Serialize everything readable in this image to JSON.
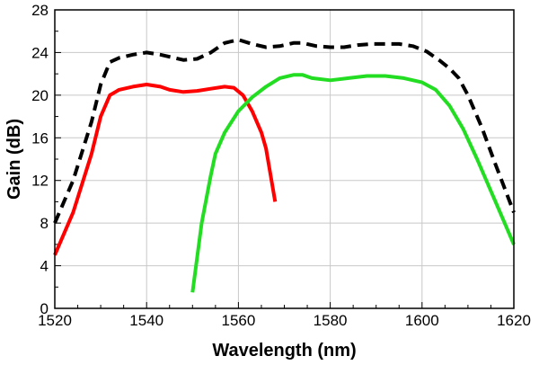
{
  "chart_data": {
    "type": "line",
    "title": "",
    "xlabel": "Wavelength (nm)",
    "ylabel": "Gain (dB)",
    "xlim": [
      1520,
      1620
    ],
    "ylim": [
      0,
      28
    ],
    "x_ticks": [
      1520,
      1540,
      1560,
      1580,
      1600,
      1620
    ],
    "y_ticks": [
      0,
      4,
      8,
      12,
      16,
      20,
      24,
      28
    ],
    "grid": true,
    "legend": "none",
    "series": [
      {
        "color": "#000000",
        "style": "dashed",
        "points": [
          [
            1520,
            8.0
          ],
          [
            1524,
            12.0
          ],
          [
            1528,
            17.5
          ],
          [
            1530,
            21.0
          ],
          [
            1532,
            23.1
          ],
          [
            1534,
            23.5
          ],
          [
            1537,
            23.8
          ],
          [
            1540,
            24.0
          ],
          [
            1543,
            23.8
          ],
          [
            1545,
            23.6
          ],
          [
            1548,
            23.3
          ],
          [
            1551,
            23.4
          ],
          [
            1554,
            24.0
          ],
          [
            1557,
            24.9
          ],
          [
            1560,
            25.2
          ],
          [
            1563,
            24.8
          ],
          [
            1566,
            24.5
          ],
          [
            1569,
            24.6
          ],
          [
            1572,
            24.9
          ],
          [
            1574,
            24.9
          ],
          [
            1577,
            24.6
          ],
          [
            1580,
            24.5
          ],
          [
            1583,
            24.5
          ],
          [
            1586,
            24.7
          ],
          [
            1589,
            24.8
          ],
          [
            1592,
            24.8
          ],
          [
            1595,
            24.8
          ],
          [
            1598,
            24.6
          ],
          [
            1601,
            24.1
          ],
          [
            1604,
            23.2
          ],
          [
            1606,
            22.5
          ],
          [
            1608,
            21.6
          ],
          [
            1610,
            20.0
          ],
          [
            1613,
            17.0
          ],
          [
            1616,
            13.5
          ],
          [
            1620,
            9.0
          ]
        ]
      },
      {
        "color": "#ff0000",
        "style": "solid",
        "points": [
          [
            1520,
            5.0
          ],
          [
            1524,
            9.0
          ],
          [
            1528,
            14.5
          ],
          [
            1530,
            18.0
          ],
          [
            1532,
            20.0
          ],
          [
            1534,
            20.5
          ],
          [
            1537,
            20.8
          ],
          [
            1540,
            21.0
          ],
          [
            1543,
            20.8
          ],
          [
            1545,
            20.5
          ],
          [
            1548,
            20.3
          ],
          [
            1551,
            20.4
          ],
          [
            1554,
            20.6
          ],
          [
            1557,
            20.8
          ],
          [
            1559,
            20.7
          ],
          [
            1561,
            20.0
          ],
          [
            1563,
            18.5
          ],
          [
            1565,
            16.5
          ],
          [
            1566,
            15.0
          ],
          [
            1567,
            12.5
          ],
          [
            1568,
            10.0
          ]
        ]
      },
      {
        "color": "#22dd22",
        "style": "solid",
        "points": [
          [
            1550,
            1.5
          ],
          [
            1552,
            8.0
          ],
          [
            1554,
            12.5
          ],
          [
            1555,
            14.5
          ],
          [
            1557,
            16.5
          ],
          [
            1560,
            18.5
          ],
          [
            1563,
            19.8
          ],
          [
            1566,
            20.8
          ],
          [
            1569,
            21.6
          ],
          [
            1572,
            21.9
          ],
          [
            1574,
            21.9
          ],
          [
            1576,
            21.6
          ],
          [
            1580,
            21.4
          ],
          [
            1584,
            21.6
          ],
          [
            1588,
            21.8
          ],
          [
            1592,
            21.8
          ],
          [
            1596,
            21.6
          ],
          [
            1600,
            21.2
          ],
          [
            1603,
            20.5
          ],
          [
            1606,
            19.0
          ],
          [
            1609,
            16.8
          ],
          [
            1612,
            14.0
          ],
          [
            1616,
            10.0
          ],
          [
            1620,
            6.0
          ]
        ]
      }
    ]
  }
}
